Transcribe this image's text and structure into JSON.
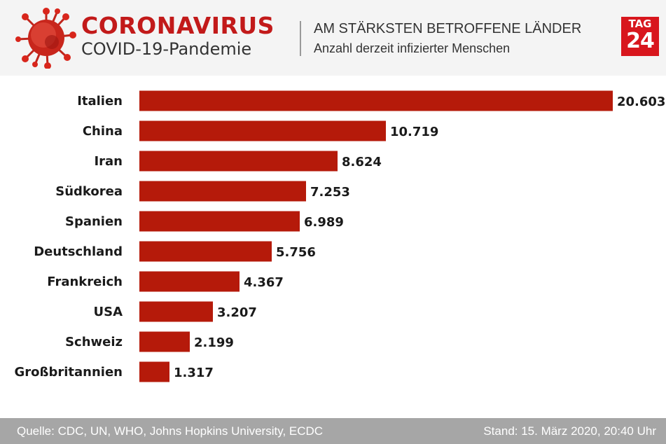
{
  "header": {
    "brand_title": "CORONAVIRUS",
    "brand_subtitle": "COVID-19-Pandemie",
    "chart_heading": "AM STÄRKSTEN BETROFFENE LÄNDER",
    "chart_subheading": "Anzahl derzeit infizierter Menschen",
    "logo_top": "TAG",
    "logo_bottom": "24",
    "icon": "coronavirus-icon"
  },
  "colors": {
    "brand_red": "#c21a1a",
    "bar": "#b51a0a",
    "logo_bg": "#d8161d",
    "footer_bg": "#a6a6a6"
  },
  "chart_data": {
    "type": "bar",
    "orientation": "horizontal",
    "categories": [
      "Italien",
      "China",
      "Iran",
      "Südkorea",
      "Spanien",
      "Deutschland",
      "Frankreich",
      "USA",
      "Schweiz",
      "Großbritannien"
    ],
    "values": [
      20603,
      10719,
      8624,
      7253,
      6989,
      5756,
      4367,
      3207,
      2199,
      1317
    ],
    "value_labels": [
      "20.603",
      "10.719",
      "8.624",
      "7.253",
      "6.989",
      "5.756",
      "4.367",
      "3.207",
      "2.199",
      "1.317"
    ],
    "title": "AM STÄRKSTEN BETROFFENE LÄNDER",
    "subtitle": "Anzahl derzeit infizierter Menschen",
    "xlim": [
      0,
      20603
    ],
    "grid": false,
    "legend": "none"
  },
  "footer": {
    "source": "Quelle: CDC, UN, WHO, Johns Hopkins University, ECDC",
    "date": "Stand: 15. März 2020, 20:40 Uhr"
  }
}
